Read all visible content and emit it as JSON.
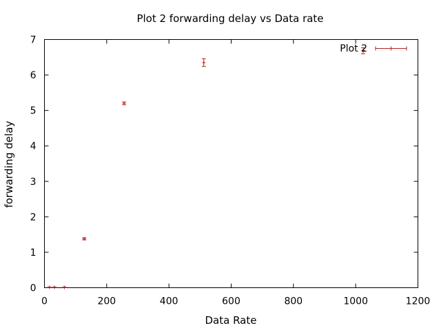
{
  "chart_data": {
    "type": "scatter",
    "title": "Plot 2 forwarding delay vs Data rate",
    "xlabel": "Data Rate",
    "ylabel": "forwarding delay",
    "xlim": [
      0,
      1200
    ],
    "ylim": [
      0,
      7
    ],
    "xticks": [
      "0",
      "200",
      "400",
      "600",
      "800",
      "1000",
      "1200"
    ],
    "yticks": [
      "0",
      "1",
      "2",
      "3",
      "4",
      "5",
      "6",
      "7"
    ],
    "grid": false,
    "legend_position": "top-right",
    "series": [
      {
        "name": "Plot 2",
        "color": "#b22222",
        "error_bars": "y",
        "points": [
          {
            "x": 16,
            "y": 0.01,
            "low": 0.0,
            "high": 0.02
          },
          {
            "x": 32,
            "y": 0.01,
            "low": 0.0,
            "high": 0.02
          },
          {
            "x": 64,
            "y": 0.01,
            "low": 0.0,
            "high": 0.02
          },
          {
            "x": 128,
            "y": 1.38,
            "low": 1.35,
            "high": 1.41
          },
          {
            "x": 256,
            "y": 5.2,
            "low": 5.16,
            "high": 5.24
          },
          {
            "x": 512,
            "y": 6.35,
            "low": 6.24,
            "high": 6.46
          },
          {
            "x": 1024,
            "y": 6.69,
            "low": 6.6,
            "high": 6.77
          }
        ]
      }
    ]
  }
}
